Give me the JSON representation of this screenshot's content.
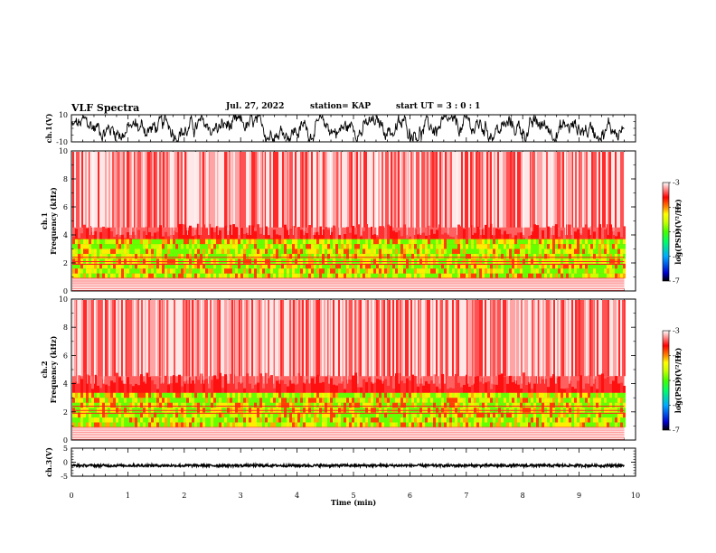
{
  "header": {
    "title": "VLF Spectra",
    "date": "Jul. 27, 2022",
    "station": "station= KAP",
    "start_ut": "start  UT =   3 : 0  : 1"
  },
  "chart_data": [
    {
      "type": "line",
      "name": "ch1-waveform",
      "ylabel": "ch.1(V)",
      "ylim": [
        -10,
        10
      ],
      "yticks": [
        "10",
        "-10"
      ],
      "xlim": [
        0,
        10
      ],
      "data_xmax": 9.8
    },
    {
      "type": "heatmap",
      "name": "ch1-spectrogram",
      "ylabel": "ch.1\nFrequency (kHz)",
      "ylabel_lines": [
        "ch.1",
        "Frequency (kHz)"
      ],
      "ylim": [
        0,
        10
      ],
      "yticks": [
        "0",
        "2",
        "4",
        "6",
        "8",
        "10"
      ],
      "xlim": [
        0,
        10
      ],
      "data_xmax": 9.8,
      "colorbar": {
        "label": "log(PSD)(V²/Hz)",
        "ticks": [
          "-3",
          "-4",
          "-5",
          "-6",
          "-7"
        ],
        "range": [
          -7,
          -3
        ]
      }
    },
    {
      "type": "heatmap",
      "name": "ch2-spectrogram",
      "ylabel_lines": [
        "ch.2",
        "Frequency (kHz)"
      ],
      "ylim": [
        0,
        10
      ],
      "yticks": [
        "0",
        "2",
        "4",
        "6",
        "8",
        "10"
      ],
      "xlim": [
        0,
        10
      ],
      "data_xmax": 9.8,
      "colorbar": {
        "label": "log(PSD)(V²/Hz)",
        "ticks": [
          "-3",
          "-4",
          "-5",
          "-6",
          "-7"
        ],
        "range": [
          -7,
          -3
        ]
      }
    },
    {
      "type": "line",
      "name": "ch3-waveform",
      "ylabel": "ch.3(V)",
      "ylim": [
        -5,
        5
      ],
      "yticks": [
        "5",
        "0",
        "-5"
      ],
      "xlim": [
        0,
        10
      ],
      "data_xmax": 9.8
    }
  ],
  "xaxis": {
    "label": "Time (min)",
    "ticks": [
      "0",
      "1",
      "2",
      "3",
      "4",
      "5",
      "6",
      "7",
      "8",
      "9",
      "10"
    ]
  },
  "colors": {
    "hot": "#ff0000",
    "warm": "#ffff00",
    "mid": "#00ff00",
    "cool": "#0000ff",
    "cold": "#000000"
  }
}
